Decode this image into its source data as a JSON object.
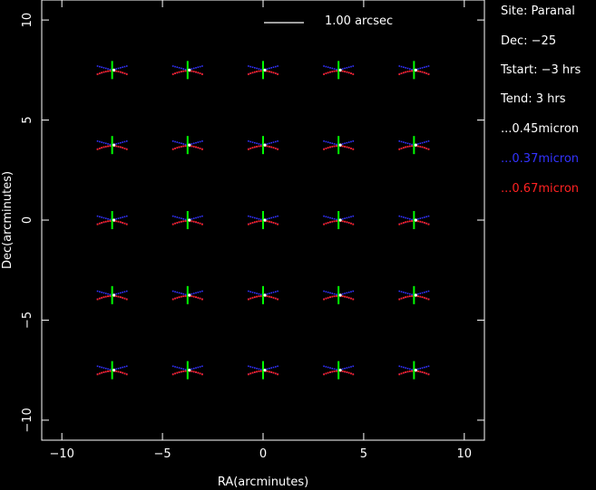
{
  "chart_data": {
    "type": "scatter",
    "xlabel": "RA(arcminutes)",
    "ylabel": "Dec(arcminutes)",
    "xlim": [
      -11,
      11
    ],
    "ylim": [
      -11,
      11
    ],
    "xticks": [
      -10,
      -5,
      0,
      5,
      10
    ],
    "yticks": [
      -10,
      -5,
      0,
      5,
      10
    ],
    "xtick_labels": [
      "−10",
      "−5",
      "0",
      "5",
      "10"
    ],
    "ytick_labels": [
      "−10",
      "−5",
      "0",
      "5",
      "10"
    ],
    "grid": false,
    "scale_bar": {
      "label": "1.00 arcsec",
      "length_arcmin": 2
    },
    "field_positions": {
      "ra": [
        -7.5,
        -3.75,
        0,
        3.75,
        7.5
      ],
      "dec": [
        7.5,
        3.75,
        0,
        -3.75,
        -7.5
      ]
    },
    "series": [
      {
        "name": "0.45micron",
        "color": "#ffffff"
      },
      {
        "name": "0.37micron",
        "color": "#3333ff"
      },
      {
        "name": "0.67micron",
        "color": "#ff2222"
      }
    ],
    "marker_color": "#00ff00"
  },
  "info": {
    "site": "Site: Paranal",
    "dec": "Dec: −25",
    "tstart": "Tstart: −3 hrs",
    "tend": "Tend:  3 hrs",
    "legend_445": "...0.45micron",
    "legend_437": "...0.37micron",
    "legend_667": "...0.67micron"
  }
}
